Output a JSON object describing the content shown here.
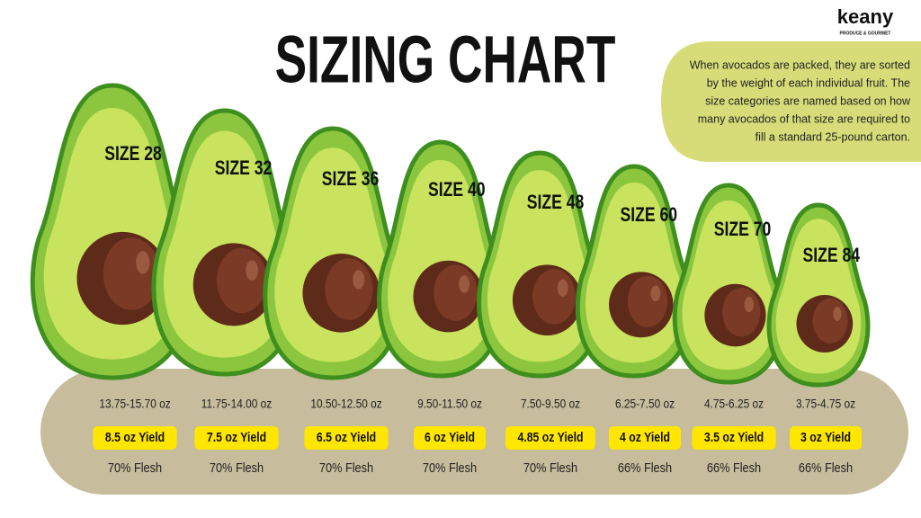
{
  "header": {
    "title": "SIZING CHART",
    "logo": "keany",
    "logo_tagline": "PRODUCE & GOURMET",
    "description": [
      "When avocados are packed, they are sorted",
      "by the weight of each individual fruit. The",
      "size categories are named based on how",
      "many avocados of that size are required to",
      "fill a standard 25-pound carton."
    ]
  },
  "sizes": [
    {
      "label": "SIZE 28",
      "weight": "13.75-15.70 oz",
      "yield": "8.5 oz Yield",
      "flesh": "70% Flesh"
    },
    {
      "label": "SIZE 32",
      "weight": "11.75-14.00 oz",
      "yield": "7.5 oz Yield",
      "flesh": "70% Flesh"
    },
    {
      "label": "SIZE 36",
      "weight": "10.50-12.50 oz",
      "yield": "6.5 oz Yield",
      "flesh": "70% Flesh"
    },
    {
      "label": "SIZE 40",
      "weight": "9.50-11.50 oz",
      "yield": "6 oz Yield",
      "flesh": "70% Flesh"
    },
    {
      "label": "SIZE 48",
      "weight": "7.50-9.50 oz",
      "yield": "4.85 oz Yield",
      "flesh": "70% Flesh"
    },
    {
      "label": "SIZE 60",
      "weight": "6.25-7.50 oz",
      "yield": "4 oz Yield",
      "flesh": "66% Flesh"
    },
    {
      "label": "SIZE 70",
      "weight": "4.75-6.25 oz",
      "yield": "3.5 oz Yield",
      "flesh": "66% Flesh"
    },
    {
      "label": "SIZE 84",
      "weight": "3.75-4.75 oz",
      "yield": "3 oz Yield",
      "flesh": "66% Flesh"
    }
  ]
}
